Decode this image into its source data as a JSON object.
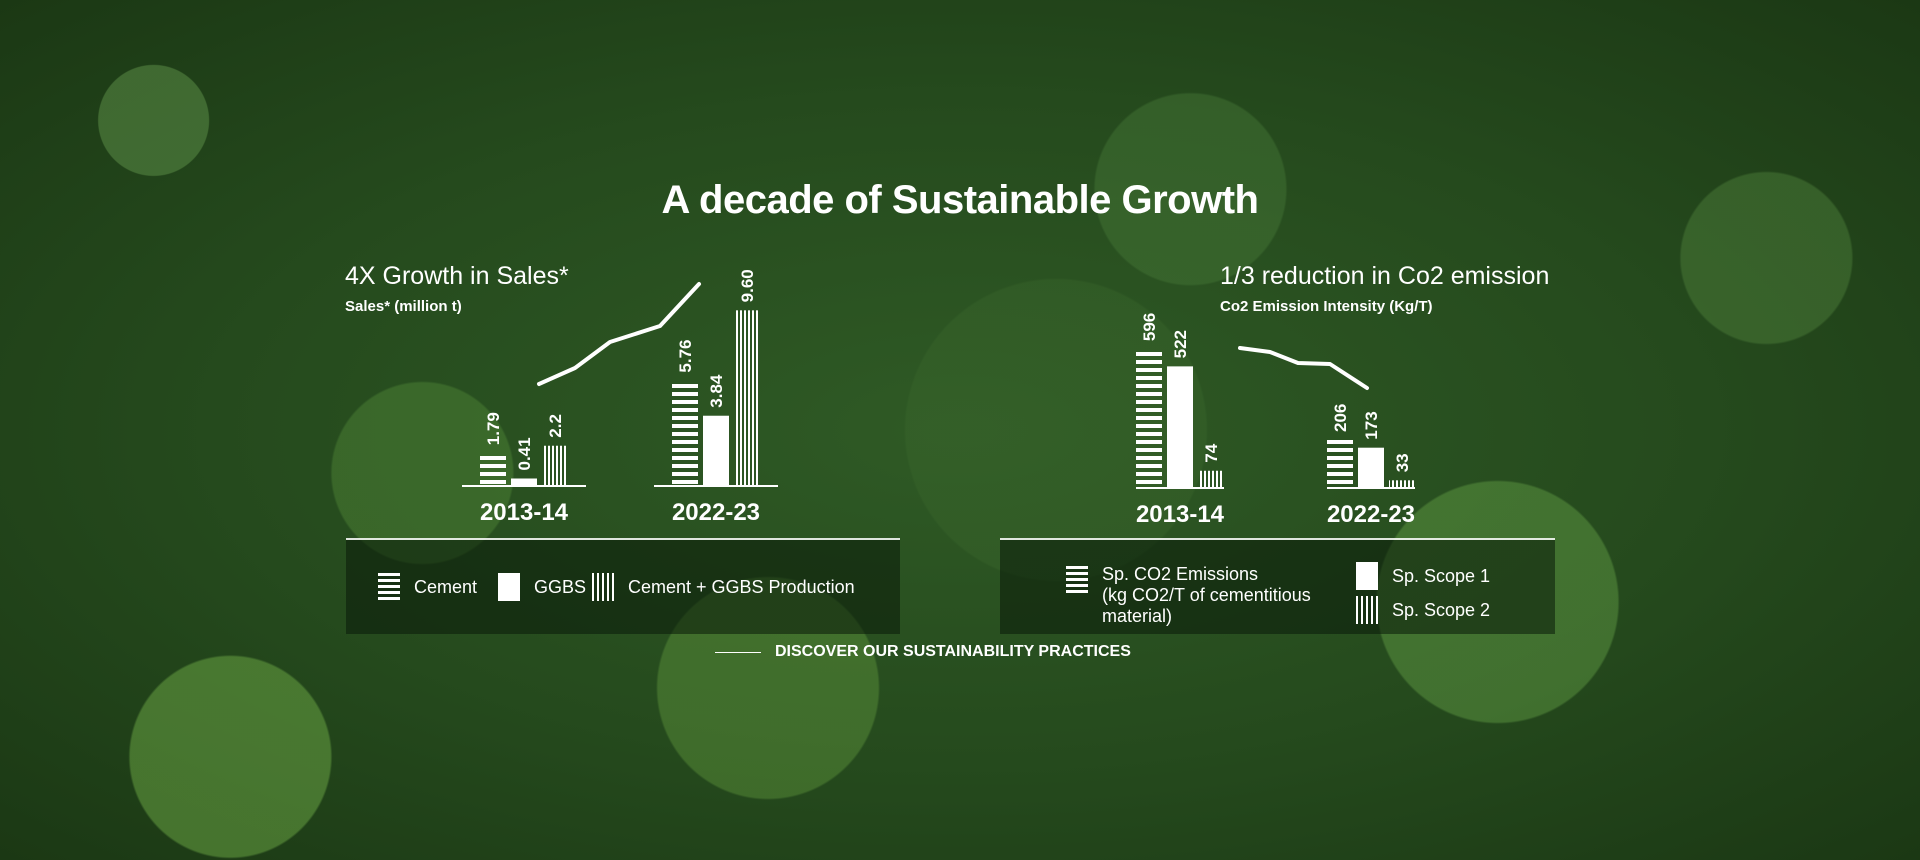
{
  "title": "A decade of Sustainable Growth",
  "left_chart": {
    "heading": "4X Growth in Sales*",
    "subtitle": "Sales* (million t)"
  },
  "right_chart": {
    "heading": "1/3 reduction in Co2 emission",
    "subtitle": "Co2 Emission Intensity (Kg/T)"
  },
  "legend_left": {
    "cement": "Cement",
    "ggbs": "GGBS",
    "production": "Cement + GGBS Production"
  },
  "legend_right": {
    "emissions": "Sp. CO2 Emissions",
    "emissions_unit_1": "(kg CO2/T of cementitious",
    "emissions_unit_2": "material)",
    "scope1": "Sp. Scope 1",
    "scope2": "Sp. Scope 2"
  },
  "cta": "DISCOVER OUR SUSTAINABILITY PRACTICES",
  "colors": {
    "text": "#ffffff"
  },
  "chart_data": [
    {
      "type": "bar",
      "categories": [
        "2013-14",
        "2022-23"
      ],
      "series": [
        {
          "name": "Cement",
          "values": [
            1.79,
            5.76
          ]
        },
        {
          "name": "GGBS",
          "values": [
            0.41,
            3.84
          ]
        },
        {
          "name": "Cement + GGBS Production",
          "values": [
            2.2,
            9.6
          ]
        }
      ],
      "labels": [
        [
          "1.79",
          "0.41",
          "2.2"
        ],
        [
          "5.76",
          "3.84",
          "9.60"
        ]
      ],
      "trend": "rising"
    },
    {
      "type": "bar",
      "categories": [
        "2013-14",
        "2022-23"
      ],
      "series": [
        {
          "name": "Sp. CO2 Emissions",
          "values": [
            596,
            206
          ]
        },
        {
          "name": "Sp. Scope 1",
          "values": [
            522,
            173
          ]
        },
        {
          "name": "Sp. Scope 2",
          "values": [
            74,
            33
          ]
        }
      ],
      "labels": [
        [
          "596",
          "522",
          "74"
        ],
        [
          "206",
          "173",
          "33"
        ]
      ],
      "trend": "falling"
    }
  ]
}
